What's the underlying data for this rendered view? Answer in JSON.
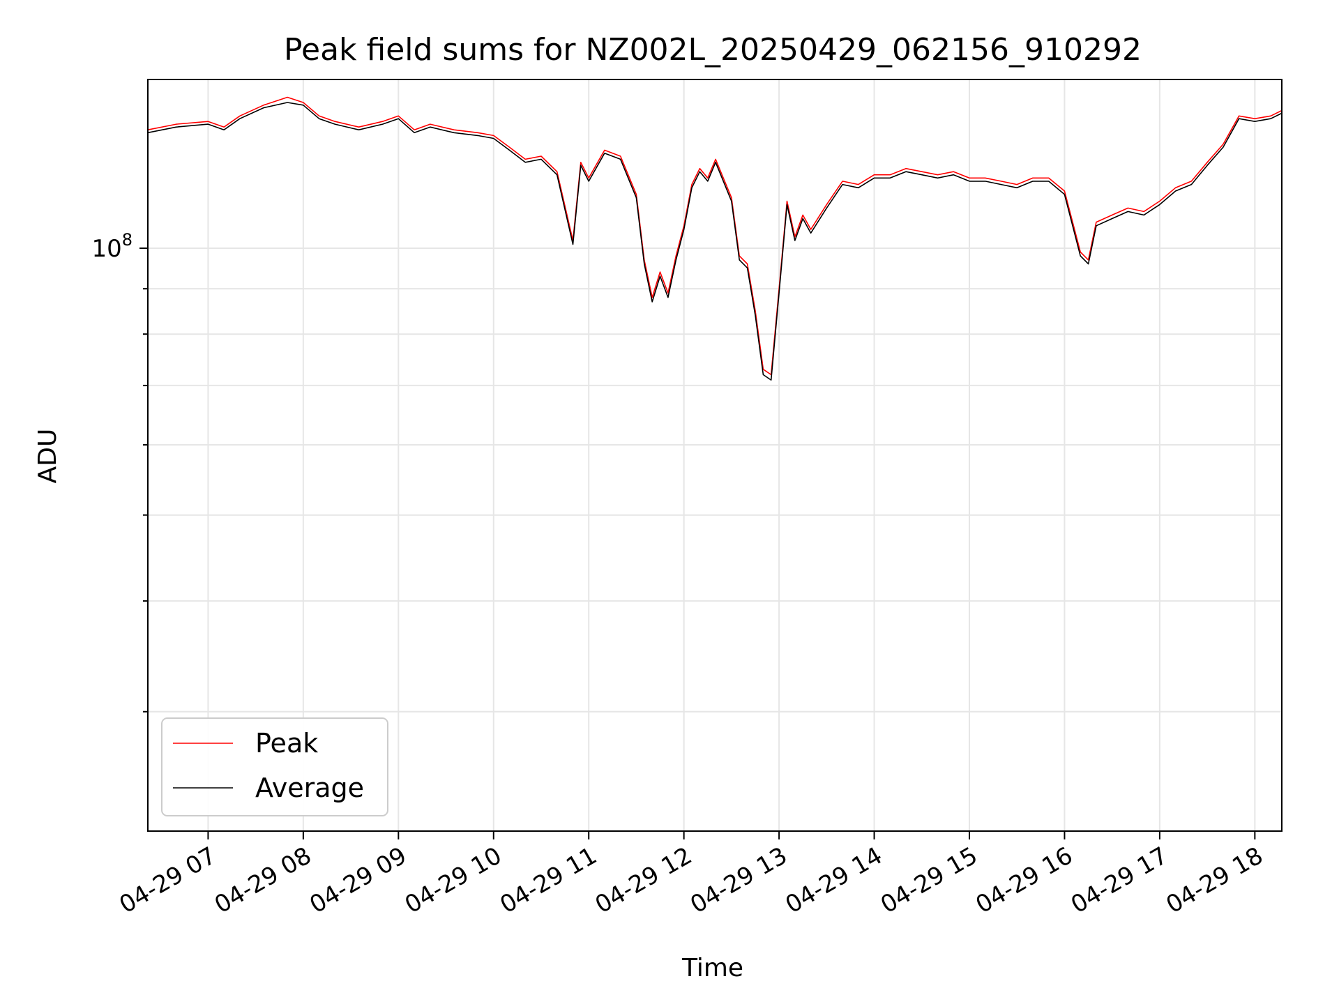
{
  "chart_data": {
    "type": "line",
    "title": "Peak field sums for NZ002L_20250429_062156_910292",
    "xlabel": "Time",
    "ylabel": "ADU",
    "y_scale": "log",
    "ylim": [
      22000000,
      155000000
    ],
    "xlim": [
      "04-29 06:22",
      "04-29 18:17"
    ],
    "y_major_tick": {
      "value": 100000000,
      "label": "10",
      "exponent": "8"
    },
    "y_minor_ticks": [
      30000000,
      40000000,
      50000000,
      60000000,
      70000000,
      80000000,
      90000000
    ],
    "x_ticks": [
      "04-29 07",
      "04-29 08",
      "04-29 09",
      "04-29 10",
      "04-29 11",
      "04-29 12",
      "04-29 13",
      "04-29 14",
      "04-29 15",
      "04-29 16",
      "04-29 17",
      "04-29 18"
    ],
    "grid": true,
    "legend_position": "lower-left",
    "series": [
      {
        "name": "Peak",
        "color": "#ff0000"
      },
      {
        "name": "Average",
        "color": "#000000"
      }
    ],
    "x": [
      "06:22",
      "06:40",
      "07:00",
      "07:10",
      "07:20",
      "07:35",
      "07:50",
      "08:00",
      "08:10",
      "08:20",
      "08:35",
      "08:50",
      "09:00",
      "09:10",
      "09:20",
      "09:35",
      "09:50",
      "10:00",
      "10:10",
      "10:20",
      "10:30",
      "10:40",
      "10:50",
      "10:55",
      "11:00",
      "11:10",
      "11:20",
      "11:30",
      "11:35",
      "11:40",
      "11:45",
      "11:50",
      "11:55",
      "12:00",
      "12:05",
      "12:10",
      "12:15",
      "12:20",
      "12:30",
      "12:35",
      "12:40",
      "12:45",
      "12:50",
      "12:55",
      "13:00",
      "13:05",
      "13:10",
      "13:15",
      "13:20",
      "13:30",
      "13:40",
      "13:50",
      "14:00",
      "14:10",
      "14:20",
      "14:30",
      "14:40",
      "14:50",
      "15:00",
      "15:10",
      "15:20",
      "15:30",
      "15:40",
      "15:50",
      "16:00",
      "16:10",
      "16:15",
      "16:20",
      "16:30",
      "16:40",
      "16:50",
      "17:00",
      "17:10",
      "17:20",
      "17:30",
      "17:40",
      "17:50",
      "18:00",
      "18:10",
      "18:17"
    ],
    "peak": [
      136000000,
      138000000,
      139000000,
      137000000,
      141000000,
      145000000,
      148000000,
      146000000,
      141000000,
      139000000,
      137000000,
      139000000,
      141000000,
      136000000,
      138000000,
      136000000,
      135000000,
      134000000,
      130000000,
      126000000,
      127000000,
      122000000,
      102000000,
      125000000,
      120000000,
      129000000,
      127000000,
      115000000,
      97000000,
      88000000,
      94000000,
      89000000,
      98000000,
      106000000,
      118000000,
      123000000,
      120000000,
      126000000,
      114000000,
      98000000,
      96000000,
      85000000,
      73000000,
      72000000,
      90000000,
      113000000,
      103000000,
      109000000,
      105000000,
      112000000,
      119000000,
      118000000,
      121000000,
      121000000,
      123000000,
      122000000,
      121000000,
      122000000,
      120000000,
      120000000,
      119000000,
      118000000,
      120000000,
      120000000,
      116000000,
      99000000,
      97000000,
      107000000,
      109000000,
      111000000,
      110000000,
      113000000,
      117000000,
      119000000,
      125000000,
      131000000,
      141000000,
      140000000,
      141000000,
      143000000
    ],
    "average": [
      135000000,
      137000000,
      138000000,
      136000000,
      140000000,
      144000000,
      146000000,
      145000000,
      140000000,
      138000000,
      136000000,
      138000000,
      140000000,
      135000000,
      137000000,
      135000000,
      134000000,
      133000000,
      129000000,
      125000000,
      126000000,
      121000000,
      101000000,
      124000000,
      119000000,
      128000000,
      126000000,
      114000000,
      96000000,
      87000000,
      93000000,
      88000000,
      97000000,
      105000000,
      117000000,
      122000000,
      119000000,
      125000000,
      113000000,
      97000000,
      95000000,
      84000000,
      72000000,
      71000000,
      89000000,
      112000000,
      102000000,
      108000000,
      104000000,
      111000000,
      118000000,
      117000000,
      120000000,
      120000000,
      122000000,
      121000000,
      120000000,
      121000000,
      119000000,
      119000000,
      118000000,
      117000000,
      119000000,
      119000000,
      115000000,
      98000000,
      96000000,
      106000000,
      108000000,
      110000000,
      109000000,
      112000000,
      116000000,
      118000000,
      124000000,
      130000000,
      140000000,
      139000000,
      140000000,
      142000000
    ]
  }
}
